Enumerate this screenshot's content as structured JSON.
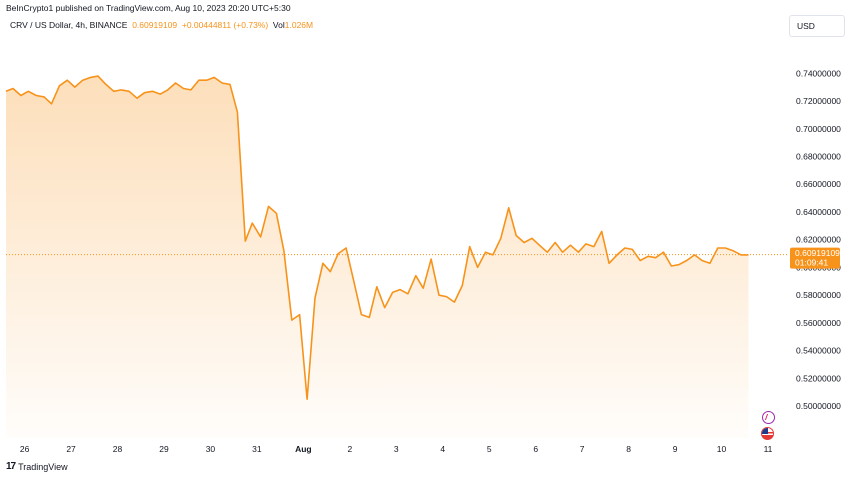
{
  "header": {
    "published_line": "BeInCrypto1 published on TradingView.com, Aug 10, 2023 20:20 UTC+5:30",
    "symbol": "CRV / US Dollar, 4h, BINANCE",
    "last_value": "0.60919109",
    "change": "+0.00444811 (+0.73%)",
    "vol_label": "Vol",
    "vol_value": "1.026M"
  },
  "currency": "USD",
  "price_label": {
    "value": "0.60919109",
    "countdown": "01:09:41"
  },
  "footer": {
    "brand": "TradingView"
  },
  "icons": {
    "event": "lightning-icon",
    "country": "us-flag-icon"
  },
  "colors": {
    "line": "#f7931a",
    "label_bg": "#f7931a",
    "axis_text": "#131722",
    "area_top": "#fbd7b3"
  },
  "chart_data": {
    "type": "area",
    "title": "CRV / US Dollar, 4h, BINANCE",
    "xlabel": "",
    "ylabel": "",
    "x_ticks": [
      "26",
      "27",
      "28",
      "29",
      "30",
      "31",
      "Aug",
      "2",
      "3",
      "4",
      "5",
      "6",
      "7",
      "8",
      "9",
      "10",
      "11"
    ],
    "x_tick_day_offsets": [
      0,
      1,
      2,
      3,
      4,
      5,
      6,
      7,
      8,
      9,
      10,
      11,
      12,
      13,
      14,
      15,
      16
    ],
    "y_ticks": [
      "0.74000000",
      "0.72000000",
      "0.70000000",
      "0.68000000",
      "0.66000000",
      "0.64000000",
      "0.62000000",
      "0.60000000",
      "0.58000000",
      "0.56000000",
      "0.54000000",
      "0.52000000",
      "0.50000000"
    ],
    "ylim": [
      0.477,
      0.764
    ],
    "xlim": [
      -0.4,
      16.0
    ],
    "current_value": 0.60919109,
    "grid": false,
    "series": [
      {
        "name": "CRV / US Dollar",
        "x": [
          -0.4,
          -0.25,
          -0.08,
          0.08,
          0.25,
          0.42,
          0.58,
          0.75,
          0.92,
          1.08,
          1.25,
          1.42,
          1.58,
          1.75,
          1.92,
          2.08,
          2.25,
          2.42,
          2.58,
          2.75,
          2.92,
          3.08,
          3.25,
          3.42,
          3.58,
          3.75,
          3.92,
          4.08,
          4.25,
          4.42,
          4.58,
          4.75,
          4.9,
          5.08,
          5.25,
          5.42,
          5.58,
          5.75,
          5.92,
          6.08,
          6.25,
          6.42,
          6.58,
          6.75,
          6.92,
          7.08,
          7.25,
          7.42,
          7.58,
          7.75,
          7.92,
          8.08,
          8.25,
          8.42,
          8.58,
          8.75,
          8.92,
          9.08,
          9.25,
          9.42,
          9.58,
          9.75,
          9.92,
          10.08,
          10.25,
          10.42,
          10.58,
          10.75,
          10.92,
          11.08,
          11.25,
          11.42,
          11.58,
          11.75,
          11.92,
          12.08,
          12.25,
          12.42,
          12.58,
          12.75,
          12.92,
          13.08,
          13.25,
          13.42,
          13.58,
          13.75,
          13.92,
          14.08,
          14.25,
          14.42,
          14.58,
          14.75,
          14.92,
          15.08,
          15.25,
          15.42,
          15.58
        ],
        "y": [
          0.727,
          0.729,
          0.724,
          0.727,
          0.724,
          0.723,
          0.718,
          0.731,
          0.735,
          0.73,
          0.735,
          0.737,
          0.738,
          0.732,
          0.727,
          0.728,
          0.727,
          0.722,
          0.726,
          0.727,
          0.725,
          0.728,
          0.733,
          0.729,
          0.728,
          0.735,
          0.735,
          0.737,
          0.733,
          0.732,
          0.712,
          0.619,
          0.632,
          0.622,
          0.644,
          0.639,
          0.612,
          0.562,
          0.566,
          0.505,
          0.578,
          0.603,
          0.597,
          0.61,
          0.614,
          0.591,
          0.566,
          0.564,
          0.586,
          0.571,
          0.582,
          0.584,
          0.581,
          0.594,
          0.585,
          0.606,
          0.58,
          0.579,
          0.575,
          0.587,
          0.615,
          0.6,
          0.611,
          0.609,
          0.621,
          0.643,
          0.623,
          0.618,
          0.621,
          0.616,
          0.611,
          0.618,
          0.611,
          0.616,
          0.611,
          0.617,
          0.615,
          0.626,
          0.603,
          0.609,
          0.614,
          0.613,
          0.605,
          0.608,
          0.607,
          0.611,
          0.601,
          0.602,
          0.605,
          0.609,
          0.605,
          0.603,
          0.614,
          0.614,
          0.612,
          0.609,
          0.609
        ]
      }
    ]
  }
}
